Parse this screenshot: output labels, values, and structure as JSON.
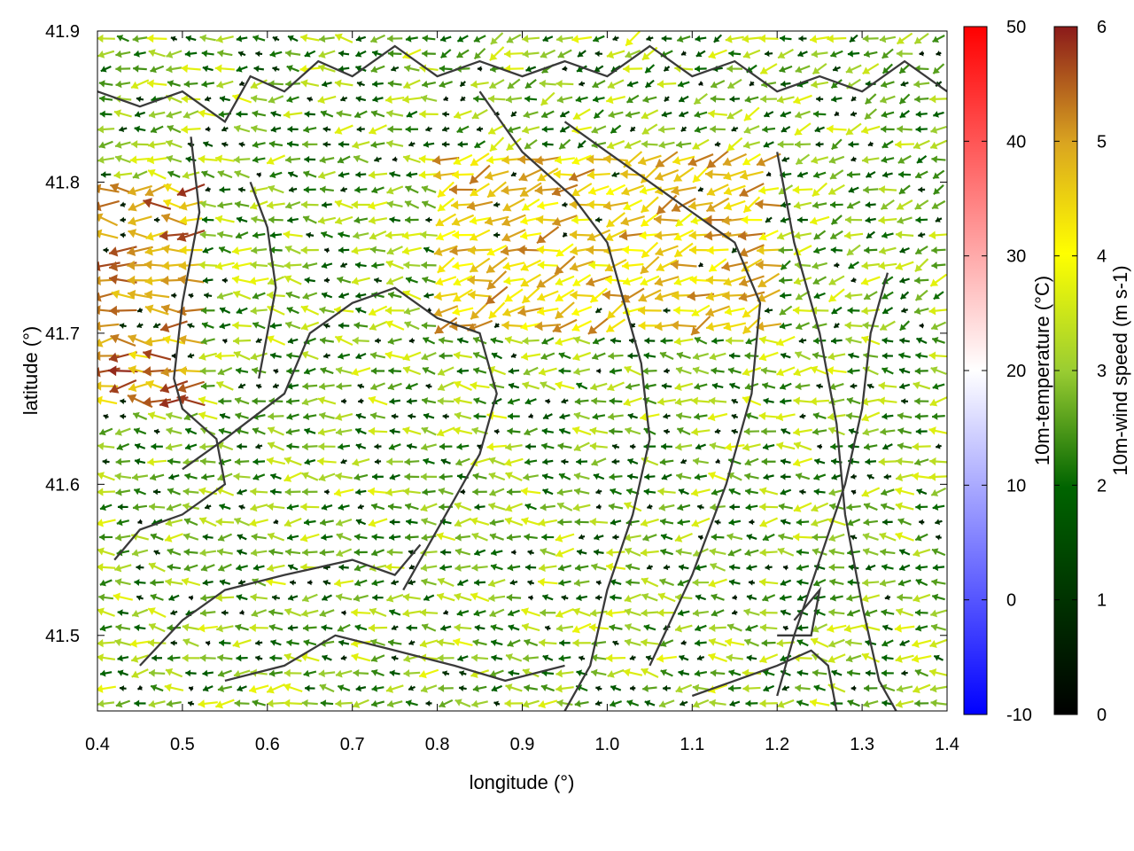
{
  "chart_data": {
    "type": "quiver",
    "xlabel": "longitude (°)",
    "ylabel": "latitude (°)",
    "xlim": [
      0.4,
      1.4
    ],
    "ylim": [
      41.45,
      41.9
    ],
    "xticks": [
      "0.4",
      "0.5",
      "0.6",
      "0.7",
      "0.8",
      "0.9",
      "1.0",
      "1.1",
      "1.2",
      "1.3",
      "1.4"
    ],
    "yticks": [
      "41.5",
      "41.6",
      "41.7",
      "41.8",
      "41.9"
    ],
    "grid": false,
    "arrow_spacing_deg": [
      0.02,
      0.01
    ],
    "wind_speed_colorbar": {
      "label": "10m-wind speed (m s-1)",
      "range": [
        0,
        6
      ],
      "ticks": [
        "0",
        "1",
        "2",
        "3",
        "4",
        "5",
        "6"
      ],
      "colors": [
        "#000000",
        "#006400",
        "#9acd32",
        "#ffff00",
        "#daa520",
        "#a0522d",
        "#8b1a1a"
      ]
    },
    "temperature_colorbar": {
      "label": "10m-temperature (°C)",
      "range": [
        -10,
        50
      ],
      "ticks": [
        "-10",
        "0",
        "10",
        "20",
        "30",
        "40",
        "50"
      ],
      "colors": [
        "#0000ff",
        "#ffffff",
        "#ff0000"
      ]
    },
    "dominant_wind_direction": "westward",
    "strong_wind_regions": [
      {
        "lon": [
          0.4,
          0.52
        ],
        "lat": [
          41.65,
          41.8
        ],
        "speed_ms": 5.5
      },
      {
        "lon": [
          0.8,
          1.2
        ],
        "lat": [
          41.7,
          41.82
        ],
        "speed_ms": 5.0
      }
    ],
    "boundary_lines": [
      [
        [
          0.4,
          41.86
        ],
        [
          0.45,
          41.85
        ],
        [
          0.5,
          41.86
        ],
        [
          0.55,
          41.84
        ],
        [
          0.58,
          41.87
        ],
        [
          0.62,
          41.86
        ],
        [
          0.66,
          41.88
        ],
        [
          0.7,
          41.87
        ],
        [
          0.75,
          41.89
        ],
        [
          0.8,
          41.87
        ],
        [
          0.85,
          41.88
        ],
        [
          0.9,
          41.87
        ],
        [
          0.95,
          41.88
        ],
        [
          1.0,
          41.87
        ],
        [
          1.05,
          41.89
        ],
        [
          1.1,
          41.87
        ],
        [
          1.15,
          41.88
        ],
        [
          1.2,
          41.86
        ],
        [
          1.25,
          41.87
        ],
        [
          1.3,
          41.86
        ],
        [
          1.35,
          41.88
        ],
        [
          1.4,
          41.86
        ]
      ],
      [
        [
          0.51,
          41.83
        ],
        [
          0.52,
          41.78
        ],
        [
          0.5,
          41.72
        ],
        [
          0.49,
          41.67
        ],
        [
          0.5,
          41.65
        ],
        [
          0.54,
          41.63
        ],
        [
          0.55,
          41.6
        ],
        [
          0.5,
          41.58
        ],
        [
          0.45,
          41.57
        ],
        [
          0.42,
          41.55
        ]
      ],
      [
        [
          0.58,
          41.8
        ],
        [
          0.6,
          41.77
        ],
        [
          0.61,
          41.73
        ],
        [
          0.6,
          41.7
        ],
        [
          0.59,
          41.67
        ]
      ],
      [
        [
          0.5,
          41.61
        ],
        [
          0.55,
          41.63
        ],
        [
          0.62,
          41.66
        ],
        [
          0.65,
          41.7
        ],
        [
          0.7,
          41.72
        ],
        [
          0.75,
          41.73
        ],
        [
          0.8,
          41.71
        ],
        [
          0.85,
          41.7
        ],
        [
          0.87,
          41.66
        ],
        [
          0.85,
          41.62
        ],
        [
          0.82,
          41.59
        ],
        [
          0.8,
          41.57
        ],
        [
          0.78,
          41.55
        ],
        [
          0.76,
          41.53
        ]
      ],
      [
        [
          0.45,
          41.48
        ],
        [
          0.5,
          41.51
        ],
        [
          0.55,
          41.53
        ],
        [
          0.62,
          41.54
        ],
        [
          0.7,
          41.55
        ],
        [
          0.75,
          41.54
        ],
        [
          0.78,
          41.56
        ]
      ],
      [
        [
          0.55,
          41.47
        ],
        [
          0.62,
          41.48
        ],
        [
          0.68,
          41.5
        ],
        [
          0.75,
          41.49
        ],
        [
          0.82,
          41.48
        ],
        [
          0.88,
          41.47
        ],
        [
          0.95,
          41.48
        ]
      ],
      [
        [
          0.85,
          41.86
        ],
        [
          0.9,
          41.82
        ],
        [
          0.96,
          41.79
        ],
        [
          1.0,
          41.76
        ],
        [
          1.02,
          41.72
        ],
        [
          1.04,
          41.68
        ],
        [
          1.05,
          41.63
        ],
        [
          1.03,
          41.58
        ],
        [
          1.0,
          41.53
        ],
        [
          0.98,
          41.48
        ],
        [
          0.95,
          41.45
        ]
      ],
      [
        [
          0.95,
          41.84
        ],
        [
          1.0,
          41.82
        ],
        [
          1.05,
          41.8
        ],
        [
          1.1,
          41.78
        ],
        [
          1.15,
          41.76
        ],
        [
          1.18,
          41.72
        ],
        [
          1.17,
          41.66
        ],
        [
          1.14,
          41.6
        ],
        [
          1.1,
          41.54
        ],
        [
          1.05,
          41.48
        ]
      ],
      [
        [
          1.2,
          41.82
        ],
        [
          1.22,
          41.76
        ],
        [
          1.25,
          41.7
        ],
        [
          1.27,
          41.64
        ],
        [
          1.28,
          41.58
        ],
        [
          1.3,
          41.52
        ],
        [
          1.32,
          41.47
        ],
        [
          1.34,
          41.45
        ]
      ],
      [
        [
          1.33,
          41.74
        ],
        [
          1.31,
          41.7
        ],
        [
          1.3,
          41.65
        ],
        [
          1.28,
          41.6
        ],
        [
          1.25,
          41.55
        ],
        [
          1.22,
          41.5
        ],
        [
          1.2,
          41.46
        ]
      ],
      [
        [
          1.27,
          41.45
        ],
        [
          1.26,
          41.48
        ],
        [
          1.24,
          41.49
        ],
        [
          1.2,
          41.48
        ],
        [
          1.15,
          41.47
        ],
        [
          1.1,
          41.46
        ]
      ],
      [
        [
          1.22,
          41.51
        ],
        [
          1.25,
          41.53
        ],
        [
          1.24,
          41.5
        ],
        [
          1.2,
          41.5
        ]
      ]
    ]
  }
}
